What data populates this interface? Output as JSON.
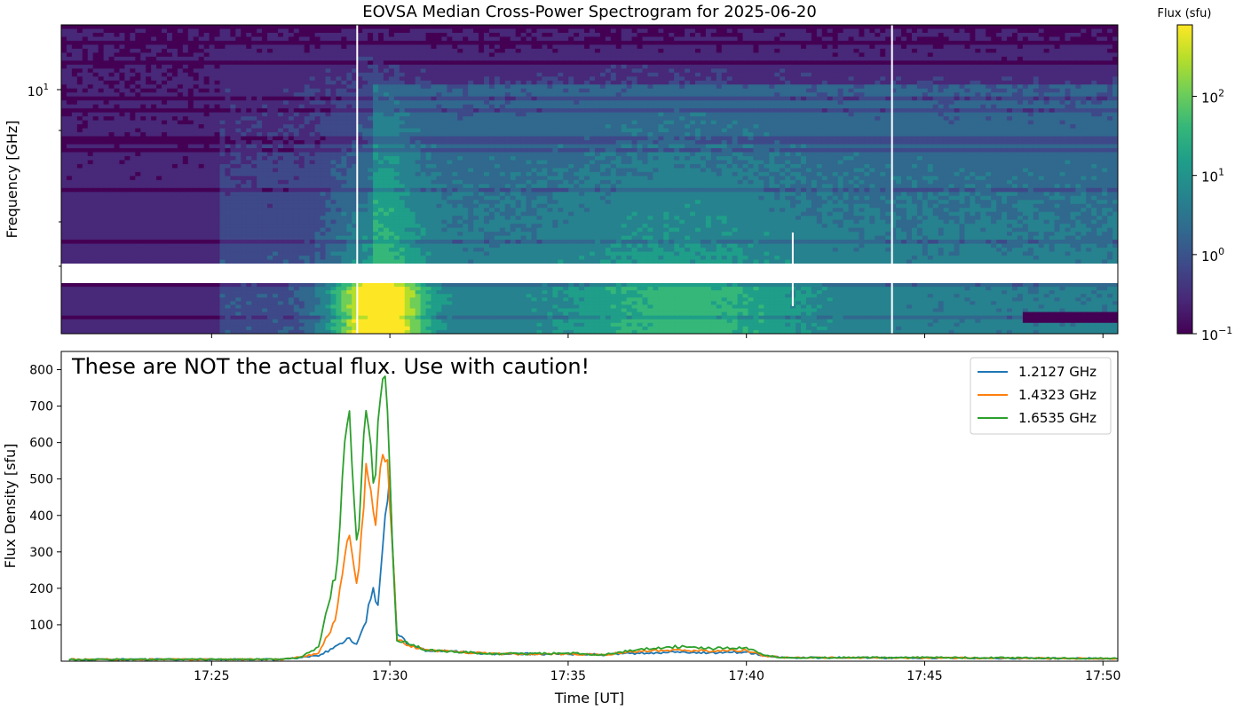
{
  "figure_title": "EOVSA Median Cross-Power Spectrogram for 2025-06-20",
  "warning_text": "These are NOT the actual flux. Use with caution!",
  "colors": {
    "viridis": [
      "#440154",
      "#482878",
      "#3e4989",
      "#31688e",
      "#26828e",
      "#1f9e89",
      "#35b779",
      "#6ece58",
      "#b5de2b",
      "#fde725"
    ],
    "series": [
      "#1f77b4",
      "#ff7f0e",
      "#2ca02c"
    ]
  },
  "chart_data": [
    {
      "type": "heatmap",
      "title": "",
      "xlabel": "",
      "ylabel": "Frequency [GHz]",
      "ytick_labels": [
        {
          "value": 10,
          "label": "10",
          "exp": "1"
        }
      ],
      "xticks": [
        "17:25",
        "17:30",
        "17:35",
        "17:40",
        "17:45",
        "17:50"
      ],
      "gap_band": "no data between lower and upper frequency bands",
      "colorbar": {
        "label": "Flux (sfu)",
        "scale": "log",
        "range": [
          0.1,
          800
        ],
        "ticks": [
          {
            "value": 0.1,
            "base": "10",
            "exp": "−1"
          },
          {
            "value": 1,
            "base": "10",
            "exp": "0"
          },
          {
            "value": 10,
            "base": "10",
            "exp": "1"
          },
          {
            "value": 100,
            "base": "10",
            "exp": "2"
          }
        ]
      }
    },
    {
      "type": "line",
      "title": "",
      "xlabel": "Time [UT]",
      "ylabel": "Flux Density [sfu]",
      "xlim": [
        "17:20:47",
        "17:50:25"
      ],
      "ylim": [
        0,
        850
      ],
      "yticks": [
        100,
        200,
        300,
        400,
        500,
        600,
        700,
        800
      ],
      "xticks": [
        "17:25",
        "17:30",
        "17:35",
        "17:40",
        "17:45",
        "17:50"
      ],
      "legend_position": "top-right",
      "series": [
        {
          "name": "1.2127 GHz",
          "points": [
            [
              "17:21:00",
              5
            ],
            [
              "17:27:00",
              5
            ],
            [
              "17:28:00",
              15
            ],
            [
              "17:28:30",
              40
            ],
            [
              "17:28:50",
              65
            ],
            [
              "17:29:05",
              45
            ],
            [
              "17:29:20",
              110
            ],
            [
              "17:29:30",
              200
            ],
            [
              "17:29:40",
              150
            ],
            [
              "17:29:50",
              340
            ],
            [
              "17:30:00",
              540
            ],
            [
              "17:30:05",
              300
            ],
            [
              "17:30:12",
              80
            ],
            [
              "17:30:30",
              45
            ],
            [
              "17:31:00",
              30
            ],
            [
              "17:33:00",
              20
            ],
            [
              "17:35:00",
              20
            ],
            [
              "17:36:00",
              18
            ],
            [
              "17:37:00",
              22
            ],
            [
              "17:38:00",
              25
            ],
            [
              "17:39:00",
              23
            ],
            [
              "17:40:00",
              25
            ],
            [
              "17:40:30",
              15
            ],
            [
              "17:41:00",
              10
            ],
            [
              "17:45:00",
              9
            ],
            [
              "17:50:25",
              7
            ]
          ]
        },
        {
          "name": "1.4323 GHz",
          "points": [
            [
              "17:21:00",
              5
            ],
            [
              "17:27:00",
              5
            ],
            [
              "17:28:00",
              20
            ],
            [
              "17:28:30",
              120
            ],
            [
              "17:28:50",
              360
            ],
            [
              "17:29:05",
              190
            ],
            [
              "17:29:20",
              520
            ],
            [
              "17:29:35",
              380
            ],
            [
              "17:29:45",
              550
            ],
            [
              "17:29:55",
              560
            ],
            [
              "17:30:05",
              300
            ],
            [
              "17:30:12",
              60
            ],
            [
              "17:30:30",
              45
            ],
            [
              "17:31:00",
              30
            ],
            [
              "17:33:00",
              20
            ],
            [
              "17:35:00",
              20
            ],
            [
              "17:36:00",
              18
            ],
            [
              "17:37:00",
              28
            ],
            [
              "17:38:00",
              30
            ],
            [
              "17:39:00",
              28
            ],
            [
              "17:40:00",
              30
            ],
            [
              "17:40:30",
              15
            ],
            [
              "17:41:00",
              10
            ],
            [
              "17:45:00",
              9
            ],
            [
              "17:50:25",
              7
            ]
          ]
        },
        {
          "name": "1.6535 GHz",
          "points": [
            [
              "17:21:00",
              5
            ],
            [
              "17:27:00",
              5
            ],
            [
              "17:27:30",
              10
            ],
            [
              "17:28:00",
              40
            ],
            [
              "17:28:30",
              250
            ],
            [
              "17:28:50",
              725
            ],
            [
              "17:29:05",
              310
            ],
            [
              "17:29:20",
              700
            ],
            [
              "17:29:35",
              460
            ],
            [
              "17:29:45",
              780
            ],
            [
              "17:29:55",
              740
            ],
            [
              "17:30:05",
              270
            ],
            [
              "17:30:12",
              60
            ],
            [
              "17:30:30",
              50
            ],
            [
              "17:31:00",
              30
            ],
            [
              "17:33:00",
              20
            ],
            [
              "17:35:00",
              22
            ],
            [
              "17:36:00",
              18
            ],
            [
              "17:37:00",
              32
            ],
            [
              "17:38:00",
              40
            ],
            [
              "17:39:00",
              35
            ],
            [
              "17:40:00",
              38
            ],
            [
              "17:40:30",
              18
            ],
            [
              "17:41:00",
              10
            ],
            [
              "17:45:00",
              10
            ],
            [
              "17:50:25",
              8
            ]
          ]
        }
      ]
    }
  ]
}
